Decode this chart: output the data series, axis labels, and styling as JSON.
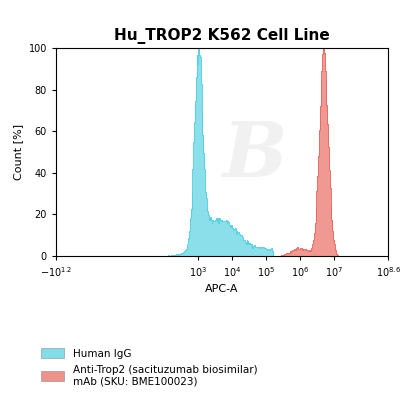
{
  "title": "Hu_TROP2 K562 Cell Line",
  "xlabel": "APC-A",
  "ylabel": "Count [%]",
  "ylim": [
    0,
    100
  ],
  "xlim_log": [
    -1.2,
    8.6
  ],
  "cyan_color": "#4DCFDF",
  "red_color": "#E8635A",
  "cyan_alpha": 0.65,
  "red_alpha": 0.65,
  "legend_label_cyan": "Human IgG",
  "legend_label_red": "Anti-Trop2 (sacituzumab biosimilar)\nmAb (SKU: BME100023)",
  "background_color": "#ffffff",
  "watermark_text": "B",
  "title_fontsize": 11,
  "axis_fontsize": 8,
  "tick_fontsize": 7
}
